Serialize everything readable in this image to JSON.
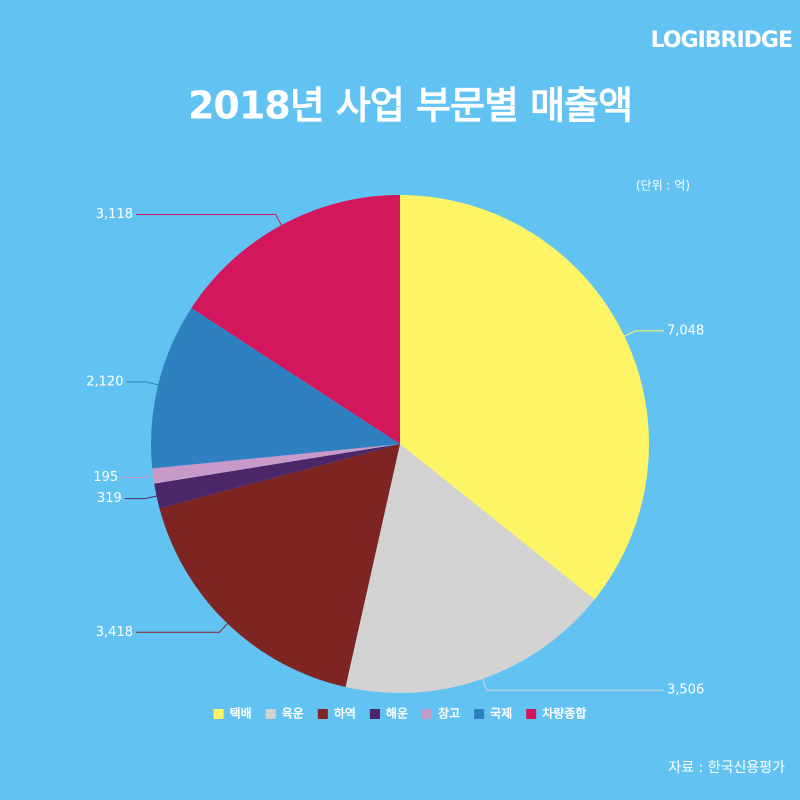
{
  "brand": "LOGIBRIDGE",
  "chart_data": {
    "type": "pie",
    "title": "2018년 사업 부문별 매출액",
    "unit_note": "(단위 : 억)",
    "categories": [
      "택배",
      "육운",
      "하역",
      "해운",
      "창고",
      "국제",
      "차량종합"
    ],
    "values": [
      7048,
      3506,
      3418,
      319,
      195,
      2120,
      3118
    ],
    "value_labels": [
      "7,048",
      "3,506",
      "3,418",
      "319",
      "195",
      "2,120",
      "3,118"
    ],
    "colors": [
      "#fef566",
      "#d3d3d3",
      "#7e2524",
      "#4b2668",
      "#c89ac9",
      "#2f80c1",
      "#d3175c"
    ],
    "legend": "bottom"
  },
  "source": "자료 :  한국신용평가"
}
